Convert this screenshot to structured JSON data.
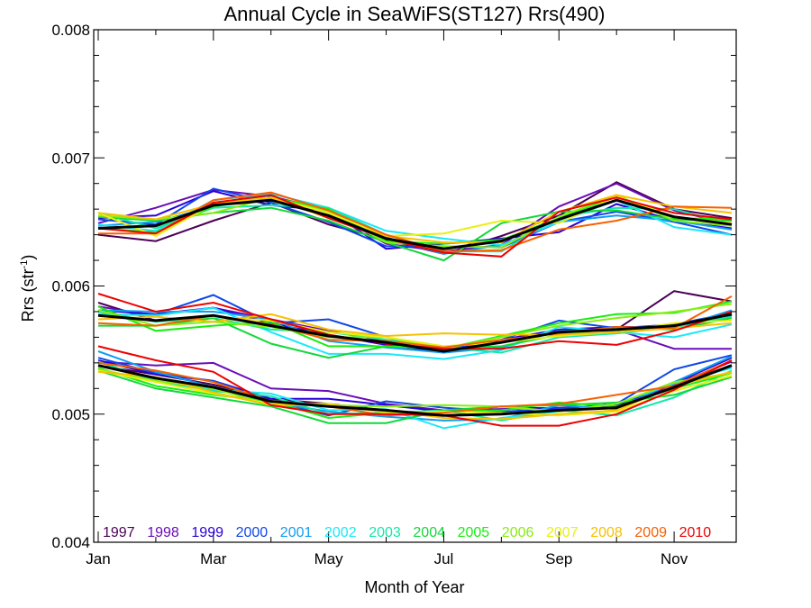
{
  "chart_data": {
    "type": "line",
    "title": "Annual Cycle in SeaWiFS(ST127) Rrs(490)",
    "xlabel": "Month of Year",
    "ylabel_main": "Rrs (str",
    "ylabel_sup": "-1",
    "ylabel_close": ")",
    "xlim": [
      1,
      12
    ],
    "ylim": [
      0.004,
      0.008
    ],
    "xticks": [
      {
        "value": 1,
        "label": "Jan"
      },
      {
        "value": 3,
        "label": "Mar"
      },
      {
        "value": 5,
        "label": "May"
      },
      {
        "value": 7,
        "label": "Jul"
      },
      {
        "value": 9,
        "label": "Sep"
      },
      {
        "value": 11,
        "label": "Nov"
      }
    ],
    "yticks": [
      {
        "value": 0.004,
        "label": "0.004"
      },
      {
        "value": 0.005,
        "label": "0.005"
      },
      {
        "value": 0.006,
        "label": "0.006"
      },
      {
        "value": 0.007,
        "label": "0.007"
      },
      {
        "value": 0.008,
        "label": "0.008"
      }
    ],
    "legend_placement": "bottom",
    "x": [
      1,
      2,
      3,
      4,
      5,
      6,
      7,
      8,
      9,
      10,
      11,
      12
    ],
    "groups": [
      {
        "mean": [
          0.00645,
          0.00647,
          0.00663,
          0.00667,
          0.00655,
          0.00637,
          0.00629,
          0.00635,
          0.00652,
          0.00667,
          0.00654,
          0.00648
        ],
        "offsets": [
          [
            -5e-05,
            -0.00012,
            -0.00012,
            -2e-05,
            -7e-05,
            -1e-05,
            -4e-05,
            4e-05,
            3e-05,
            0.00014,
            6e-05,
            5e-05
          ],
          [
            4e-05,
            0.00014,
            0.00012,
            3e-05,
            4e-05,
            -4e-05,
            -2e-05,
            -3e-05,
            0.0001,
            0.00013,
            5e-05,
            0.0
          ],
          [
            8e-05,
            8e-05,
            0.00011,
            -4e-05,
            4e-05,
            -8e-05,
            4e-05,
            2e-05,
            -0.0001,
            -3e-05,
            -3e-05,
            -3e-05
          ],
          [
            7e-05,
            1e-05,
            0.00013,
            -2e-05,
            -5e-05,
            -6e-05,
            2e-05,
            -5e-05,
            -2e-05,
            -9e-05,
            -4e-05,
            -8e-05
          ],
          [
            2e-05,
            3e-05,
            -1e-05,
            4e-05,
            -2e-05,
            1e-05,
            -4e-05,
            -3e-05,
            -2e-05,
            -0.00012,
            -3e-05,
            -4e-05
          ],
          [
            3e-05,
            -4e-05,
            4e-05,
            5e-05,
            6e-05,
            6e-05,
            8e-05,
            -3e-05,
            -2e-05,
            0.0,
            -8e-05,
            -8e-05
          ],
          [
            0.00012,
            -2e-05,
            -2e-05,
            -4e-05,
            6e-05,
            3e-05,
            -2e-05,
            -8e-05,
            2e-05,
            -6e-05,
            6e-05,
            0.0
          ],
          [
            9e-05,
            4e-05,
            -6e-05,
            -6e-05,
            -4e-05,
            -3e-05,
            -9e-05,
            0.00014,
            6e-05,
            -8e-05,
            -2e-05,
            3e-05
          ],
          [
            0.0,
            -5e-05,
            -1e-05,
            2e-05,
            5e-05,
            -2e-05,
            4e-05,
            1e-05,
            1e-05,
            3e-05,
            -1e-05,
            4e-05
          ],
          [
            0.0001,
            5e-05,
            -6e-05,
            2e-05,
            3e-05,
            -3e-05,
            2e-05,
            -5e-05,
            2e-05,
            4e-05,
            -3e-05,
            -1e-05
          ],
          [
            0.00012,
            -8e-05,
            1e-05,
            2e-05,
            2e-05,
            2e-05,
            0.00012,
            0.00016,
            -3e-05,
            3e-05,
            0.0,
            1e-05
          ],
          [
            0.00012,
            5e-05,
            1e-05,
            2e-05,
            -2e-05,
            2e-05,
            5e-05,
            -1e-05,
            6e-05,
            4e-05,
            8e-05,
            9e-05
          ],
          [
            -4e-05,
            -6e-05,
            4e-05,
            6e-05,
            4e-05,
            3e-05,
            -2e-05,
            -7e-05,
            -8e-05,
            -0.00016,
            8e-05,
            0.00013
          ],
          [
            0.0,
            -6e-05,
            2e-05,
            4e-05,
            -2e-05,
            0.0,
            -3e-05,
            -0.00012,
            6e-05,
            2e-05,
            3e-05,
            4e-05
          ]
        ]
      },
      {
        "mean": [
          0.00577,
          0.00573,
          0.00577,
          0.00569,
          0.00561,
          0.00556,
          0.00549,
          0.00556,
          0.00564,
          0.00566,
          0.00569,
          0.00578
        ],
        "offsets": [
          [
            0.0001,
            0.0,
            0.0,
            0.0,
            0.0,
            0.0,
            0.0,
            0.0,
            0.0,
            0.0,
            0.00027,
            0.0001
          ],
          [
            7e-05,
            4e-05,
            6e-05,
            5e-05,
            4e-05,
            1e-05,
            0.0,
            0.0,
            0.0,
            0.0,
            -0.00018,
            -0.00027
          ],
          [
            4e-05,
            5e-05,
            6e-05,
            2e-05,
            1e-05,
            -2e-05,
            -1e-05,
            2e-05,
            2e-05,
            2e-05,
            -1e-05,
            -1e-05
          ],
          [
            0.0,
            5e-05,
            0.00016,
            2e-05,
            0.00013,
            4e-05,
            1e-05,
            2e-05,
            9e-05,
            1e-05,
            1e-05,
            1e-05
          ],
          [
            4e-05,
            7e-05,
            3e-05,
            5e-05,
            -4e-05,
            -4e-05,
            -1e-05,
            -4e-05,
            1e-05,
            0.0,
            -2e-05,
            3e-05
          ],
          [
            1e-05,
            4e-05,
            6e-05,
            -5e-05,
            -0.00014,
            -9e-05,
            -6e-05,
            -6e-05,
            4e-05,
            -2e-05,
            -9e-05,
            -8e-05
          ],
          [
            3e-05,
            -1e-05,
            -2e-05,
            -3e-05,
            3e-05,
            2e-05,
            3e-05,
            -8e-05,
            -4e-05,
            -3e-05,
            -1e-05,
            -2e-05
          ],
          [
            -8e-05,
            -4e-05,
            -2e-05,
            -0.00014,
            -0.00017,
            -3e-05,
            2e-05,
            -3e-05,
            -2e-05,
            1e-05,
            -3e-05,
            -3e-05
          ],
          [
            7e-05,
            -8e-05,
            -8e-05,
            3e-05,
            -8e-05,
            -3e-05,
            2e-05,
            5e-05,
            7e-05,
            0.00012,
            0.0001,
            0.0001
          ],
          [
            4e-05,
            -4e-05,
            -5e-05,
            -1e-05,
            -1e-05,
            4e-05,
            2e-05,
            4e-05,
            5e-05,
            9e-05,
            0.00011,
            8e-05
          ],
          [
            0.0,
            0.0,
            -1e-05,
            4e-05,
            3e-05,
            4e-05,
            4e-05,
            0.0,
            -3e-05,
            -2e-05,
            2e-05,
            -5e-05
          ],
          [
            -3e-05,
            3e-05,
            -5e-05,
            9e-05,
            5e-05,
            5e-05,
            0.00014,
            6e-05,
            -2e-05,
            -2e-05,
            -2e-05,
            -7e-05
          ],
          [
            -6e-05,
            -4e-05,
            0.0,
            1e-05,
            -3e-05,
            1e-05,
            3e-05,
            2e-05,
            -1e-05,
            2e-05,
            -2e-05,
            0.00014
          ],
          [
            0.00017,
            7e-05,
            0.0001,
            5e-05,
            1e-05,
            -1e-05,
            2e-05,
            -5e-05,
            -7e-05,
            -0.00012,
            -4e-05,
            2e-05
          ]
        ]
      },
      {
        "mean": [
          0.00538,
          0.00528,
          0.00521,
          0.0051,
          0.00506,
          0.00503,
          0.00499,
          0.005,
          0.00503,
          0.00505,
          0.00521,
          0.00538
        ],
        "offsets": [
          [
            0.0,
            3e-05,
            2e-05,
            2e-05,
            2e-05,
            0.0,
            0.0,
            0.0,
            0.0,
            0.0,
            0.0,
            0.0
          ],
          [
            3e-05,
            0.0001,
            0.00019,
            0.0001,
            0.00012,
            5e-05,
            4e-05,
            4e-05,
            2e-05,
            1e-05,
            2e-05,
            3e-05
          ],
          [
            4e-05,
            3e-05,
            5e-05,
            2e-05,
            6e-05,
            4e-05,
            3e-05,
            6e-05,
            1e-05,
            2e-05,
            3e-05,
            6e-05
          ],
          [
            6e-05,
            4e-05,
            5e-05,
            0.0,
            -7e-05,
            7e-05,
            6e-05,
            2e-05,
            1e-05,
            3e-05,
            0.00014,
            8e-05
          ],
          [
            0.00011,
            5e-05,
            0.0,
            -1e-05,
            -4e-05,
            -5e-05,
            -4e-05,
            -4e-05,
            4e-05,
            -1e-05,
            4e-05,
            7e-05
          ],
          [
            3e-05,
            -3e-05,
            -2e-05,
            6e-05,
            -3e-05,
            1e-05,
            -0.0001,
            -3e-05,
            -1e-05,
            3e-05,
            3e-05,
            -2e-05
          ],
          [
            3e-05,
            -2e-05,
            -3e-05,
            4e-05,
            -6e-05,
            -2e-05,
            4e-05,
            -5e-05,
            0.0,
            -6e-05,
            -8e-05,
            -4e-05
          ],
          [
            -4e-05,
            -8e-05,
            -8e-05,
            -4e-05,
            -0.00013,
            -0.0001,
            4e-05,
            6e-05,
            4e-05,
            4e-05,
            -6e-05,
            -9e-05
          ],
          [
            -2e-05,
            -6e-05,
            -6e-05,
            0.0,
            -9e-05,
            -2e-05,
            3e-05,
            3e-05,
            6e-05,
            1e-05,
            -1e-05,
            -6e-05
          ],
          [
            -3e-05,
            -2e-05,
            -1e-05,
            -3e-05,
            1e-05,
            3e-05,
            8e-05,
            6e-05,
            -1e-05,
            3e-05,
            4e-05,
            -6e-05
          ],
          [
            -4e-05,
            -3e-05,
            -5e-05,
            -2e-05,
            2e-05,
            -2e-05,
            3e-05,
            1e-05,
            -4e-05,
            -3e-05,
            -3e-05,
            -8e-05
          ],
          [
            -5e-05,
            1e-05,
            -4e-05,
            -3e-05,
            1e-05,
            0.0,
            -2e-05,
            -4e-05,
            -3e-05,
            -2e-05,
            1e-05,
            -5e-05
          ],
          [
            2e-05,
            6e-05,
            4e-05,
            0.0,
            0.0,
            -4e-05,
            2e-05,
            6e-05,
            5e-05,
            0.0001,
            1e-05,
            4e-05
          ],
          [
            0.00015,
            0.00014,
            0.00012,
            -3e-05,
            -6e-05,
            -3e-05,
            0.0,
            -9e-05,
            -0.00012,
            -5e-05,
            -2e-05,
            4e-05
          ]
        ]
      }
    ],
    "series": [
      {
        "name": "1997",
        "color": "#4a0055"
      },
      {
        "name": "1998",
        "color": "#6a0db8"
      },
      {
        "name": "1999",
        "color": "#2a00d8"
      },
      {
        "name": "2000",
        "color": "#0f48e8"
      },
      {
        "name": "2001",
        "color": "#109ef0"
      },
      {
        "name": "2002",
        "color": "#1ae8f8"
      },
      {
        "name": "2003",
        "color": "#12e8a8"
      },
      {
        "name": "2004",
        "color": "#12d838"
      },
      {
        "name": "2005",
        "color": "#18ee10"
      },
      {
        "name": "2006",
        "color": "#88ee10"
      },
      {
        "name": "2007",
        "color": "#e8f010"
      },
      {
        "name": "2008",
        "color": "#f8c000"
      },
      {
        "name": "2009",
        "color": "#f86000"
      },
      {
        "name": "2010",
        "color": "#ee0000"
      }
    ]
  }
}
